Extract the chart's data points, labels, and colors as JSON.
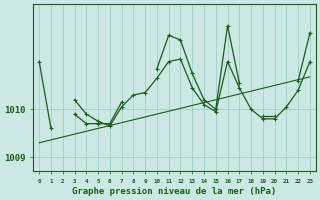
{
  "xlabel": "Graphe pression niveau de la mer (hPa)",
  "bg_color": "#cce8e4",
  "plot_bg_color": "#cce8e4",
  "grid_color": "#9cc8c0",
  "line_color": "#1a5c1a",
  "x_values": [
    0,
    1,
    2,
    3,
    4,
    5,
    6,
    7,
    8,
    9,
    10,
    11,
    12,
    13,
    14,
    15,
    16,
    17,
    18,
    19,
    20,
    21,
    22,
    23
  ],
  "series1": [
    1011.0,
    1009.6,
    null,
    1009.9,
    1009.7,
    1009.7,
    1009.7,
    1010.15,
    null,
    null,
    1010.85,
    1011.55,
    1011.45,
    1010.75,
    1010.2,
    1010.0,
    1011.75,
    1010.55,
    null,
    1009.85,
    1009.85,
    null,
    1010.6,
    1011.6
  ],
  "series2": [
    null,
    null,
    null,
    1010.2,
    1009.9,
    1009.75,
    1009.65,
    1010.05,
    1010.3,
    1010.35,
    1010.65,
    1011.0,
    1011.05,
    1010.45,
    1010.1,
    1009.95,
    1011.0,
    1010.45,
    1010.0,
    1009.8,
    1009.8,
    1010.05,
    1010.4,
    1011.0
  ],
  "trend": [
    1009.3,
    1009.36,
    1009.42,
    1009.48,
    1009.54,
    1009.6,
    1009.66,
    1009.72,
    1009.78,
    1009.84,
    1009.9,
    1009.96,
    1010.02,
    1010.08,
    1010.14,
    1010.2,
    1010.26,
    1010.32,
    1010.38,
    1010.44,
    1010.5,
    1010.56,
    1010.62,
    1010.68
  ],
  "ylim_min": 1008.7,
  "ylim_max": 1012.2,
  "ytick_vals": [
    1009.0,
    1010.0
  ],
  "ytick_labels": [
    "1009",
    "1010"
  ],
  "xtick_labels": [
    "0",
    "1",
    "2",
    "3",
    "4",
    "5",
    "6",
    "7",
    "8",
    "9",
    "10",
    "11",
    "12",
    "13",
    "14",
    "15",
    "16",
    "17",
    "18",
    "19",
    "20",
    "21",
    "22",
    "23"
  ]
}
